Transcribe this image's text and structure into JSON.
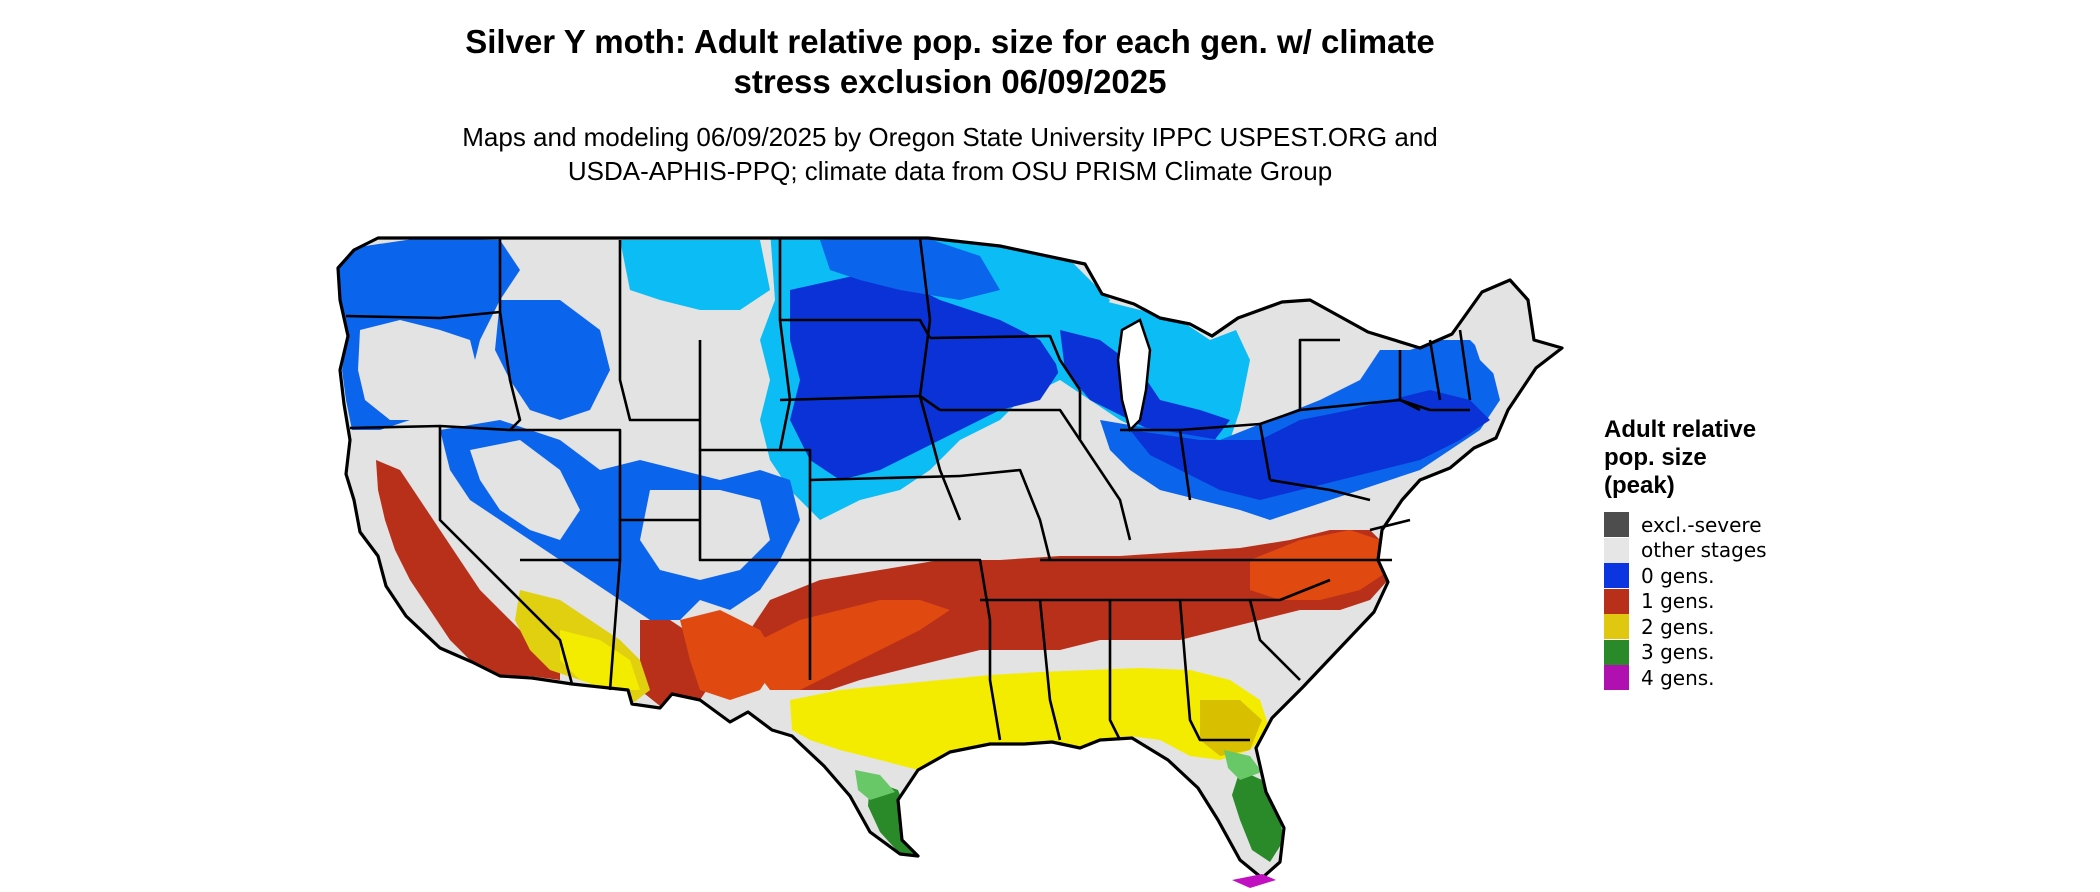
{
  "title_line1": "Silver Y moth: Adult relative pop. size for each gen. w/ climate",
  "title_line2": "stress exclusion 06/09/2025",
  "subtitle_line1": "Maps and modeling 06/09/2025 by Oregon State University IPPC USPEST.ORG and",
  "subtitle_line2": "USDA-APHIS-PPQ; climate data from OSU PRISM Climate Group",
  "legend": {
    "title_line1": "Adult relative",
    "title_line2": "pop. size",
    "title_line3": "(peak)",
    "items": [
      {
        "label": "excl.-severe",
        "color": "#4d4d4d"
      },
      {
        "label": "other stages",
        "color": "#e6e6e6"
      },
      {
        "label": "0 gens.",
        "color": "#0a35e0"
      },
      {
        "label": "1 gens.",
        "color": "#b8301a"
      },
      {
        "label": "2 gens.",
        "color": "#e0c810"
      },
      {
        "label": "3 gens.",
        "color": "#2a8a2a"
      },
      {
        "label": "4 gens.",
        "color": "#b010b0"
      }
    ]
  },
  "colors": {
    "gray": "#e3e3e3",
    "blue_light": "#0bbcf5",
    "blue_mid": "#0a64ec",
    "blue_dark": "#0a32d6",
    "red": "#b8301a",
    "orange": "#e04a10",
    "yellow": "#f4ec00",
    "yellow_dark": "#d8c000",
    "green": "#2a8a2a",
    "green_light": "#68c868",
    "magenta": "#c010c0",
    "border": "#000000"
  }
}
